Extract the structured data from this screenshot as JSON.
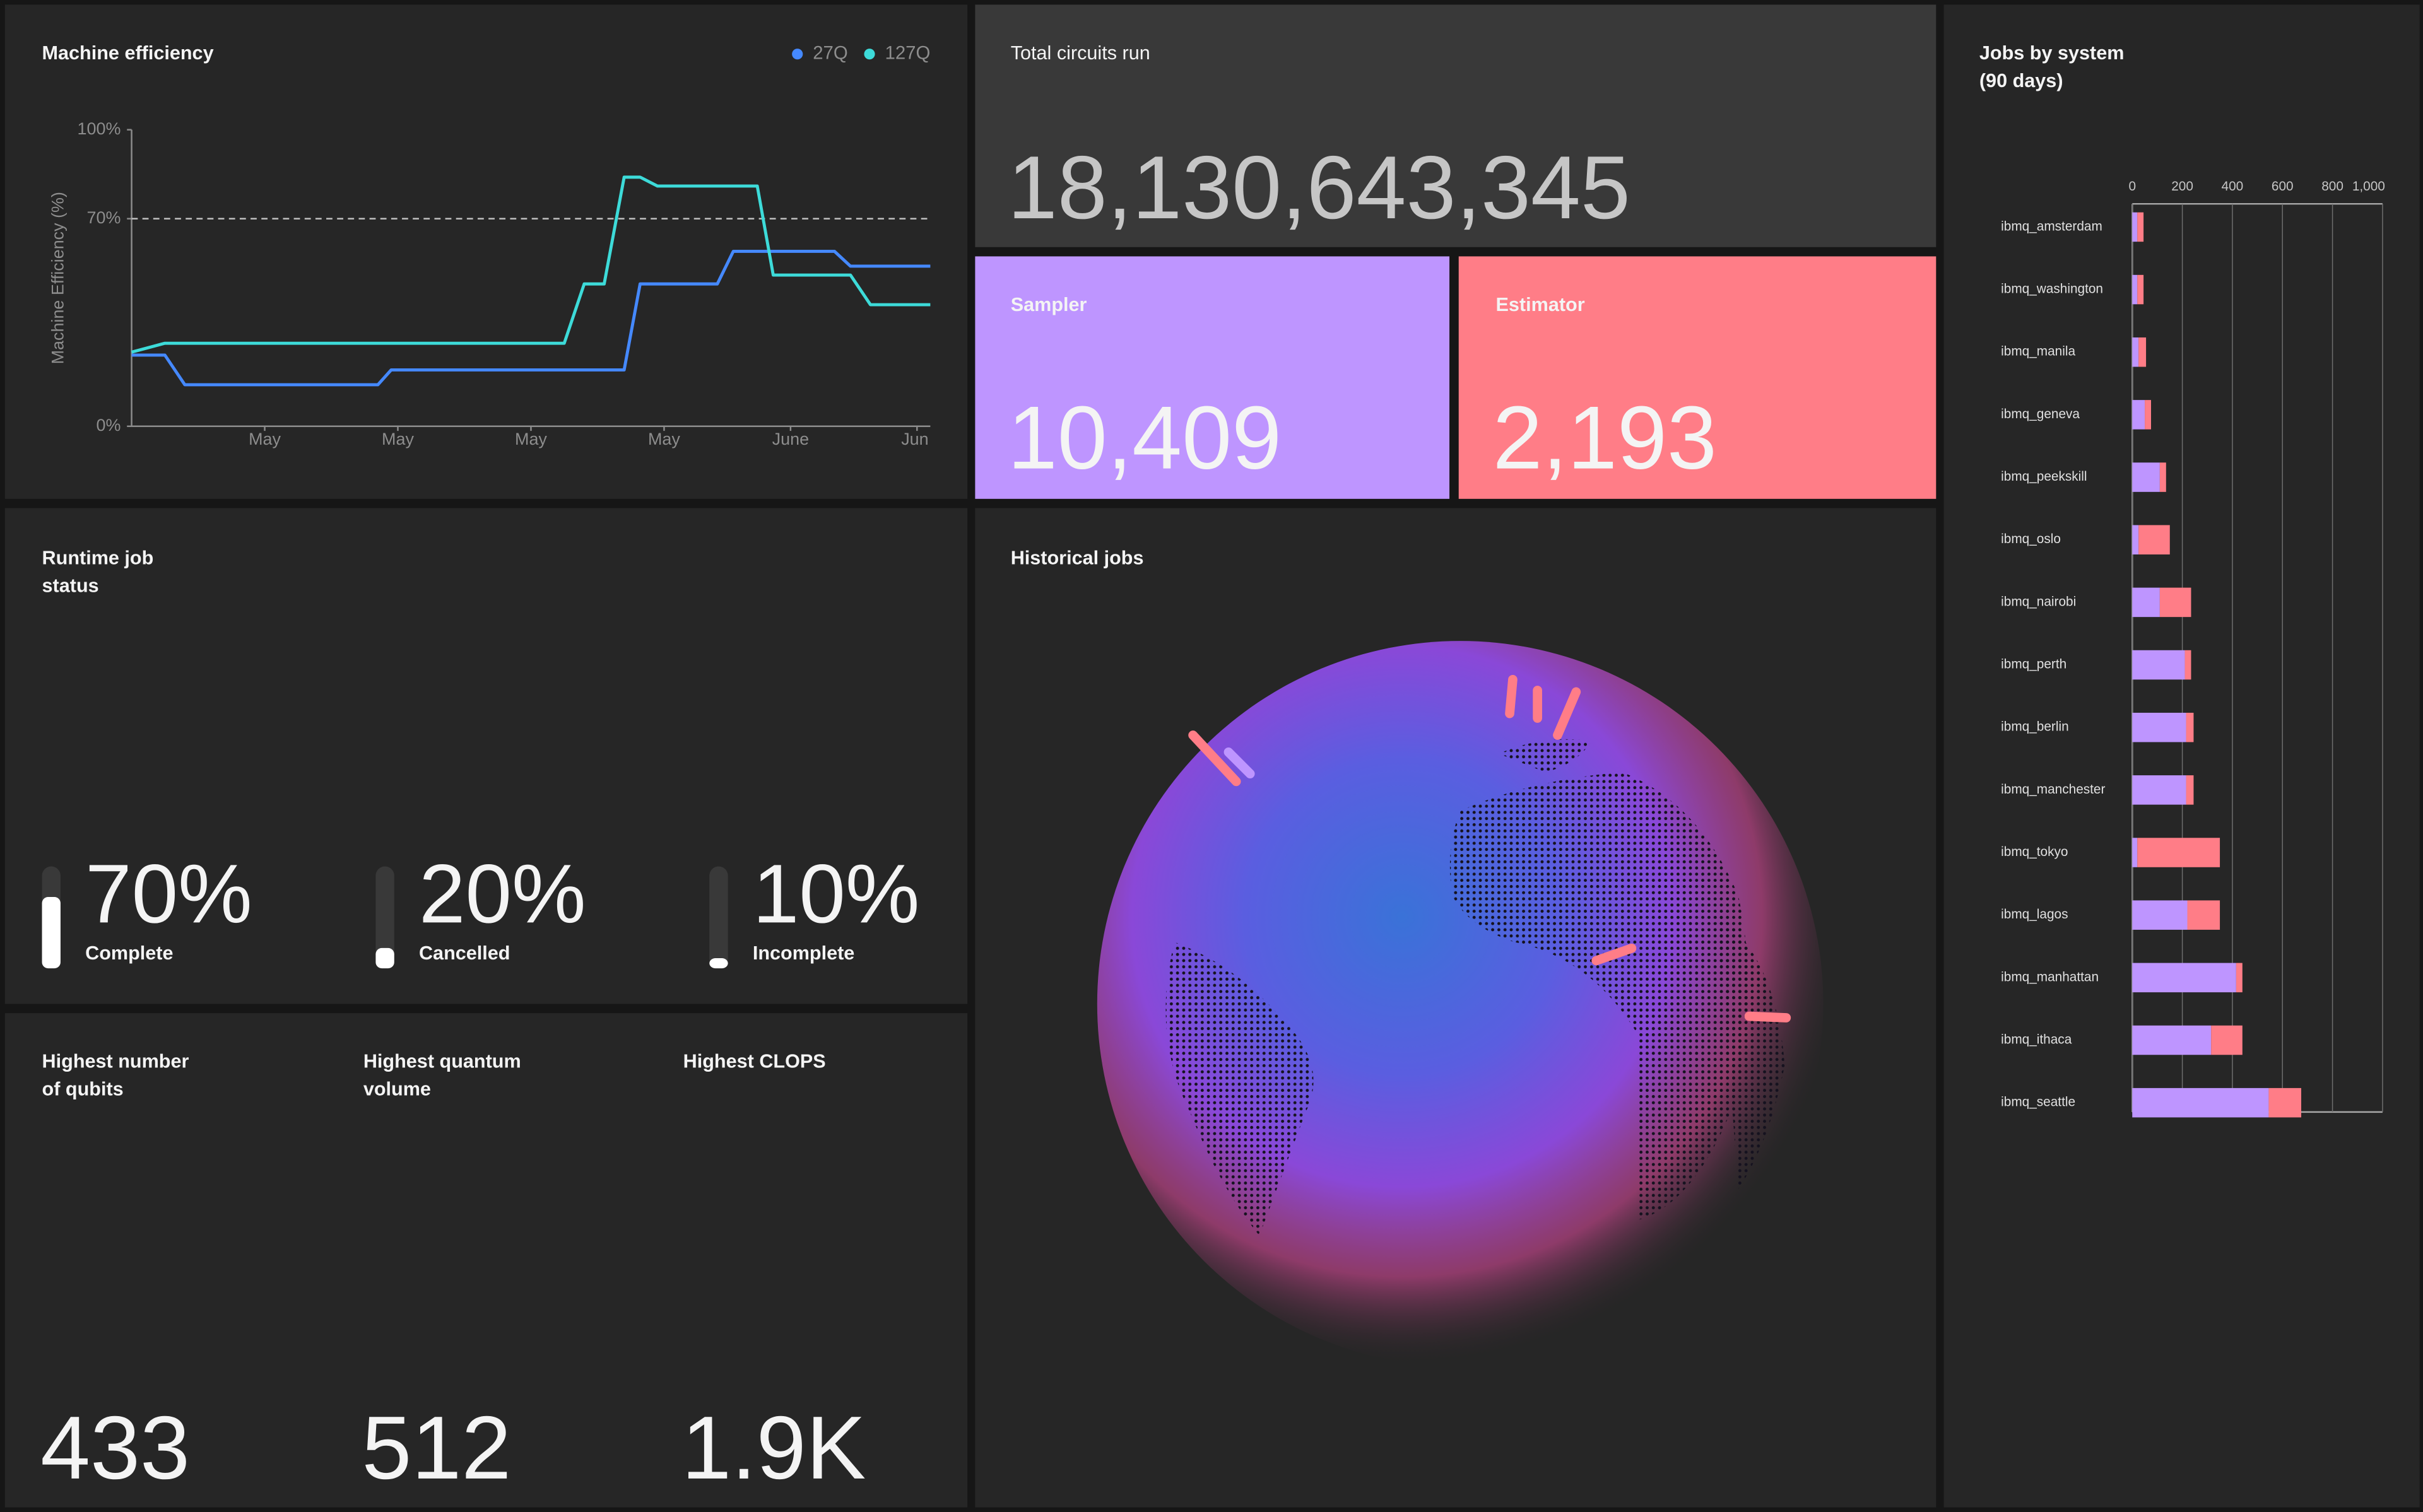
{
  "chart_data": [
    {
      "type": "line",
      "title": "Machine efficiency",
      "y_label": "Machine Efficiency (%)",
      "x": [
        0,
        2.5,
        4,
        18.5,
        19.5,
        32.5,
        34,
        35.5,
        37,
        38.2,
        39.5,
        44,
        45.2,
        47,
        48.2,
        52.8,
        54,
        55.5,
        60
      ],
      "xlim": [
        0,
        60
      ],
      "xticks": [
        {
          "value": 10,
          "label": "May"
        },
        {
          "value": 20,
          "label": "May"
        },
        {
          "value": 30,
          "label": "May"
        },
        {
          "value": 40,
          "label": "May"
        },
        {
          "value": 49.5,
          "label": "June"
        },
        {
          "value": 59,
          "label": "Jun"
        }
      ],
      "ylim": [
        0,
        100
      ],
      "yticks": [
        {
          "value": 0,
          "label": "0%"
        },
        {
          "value": 70,
          "label": "70%"
        },
        {
          "value": 100,
          "label": "100%"
        }
      ],
      "reference_line": 70,
      "series": [
        {
          "name": "27Q",
          "color": "#4589ff",
          "values": [
            24,
            24,
            14,
            14,
            19,
            19,
            19,
            19,
            19,
            48,
            48,
            48,
            59,
            59,
            59,
            59,
            54,
            54,
            54
          ]
        },
        {
          "name": "127Q",
          "color": "#3ddbd9",
          "values": [
            25,
            28,
            28,
            28,
            28,
            28,
            48,
            48,
            84,
            84,
            81,
            81,
            81,
            81,
            51,
            51,
            51,
            41,
            41
          ]
        }
      ]
    },
    {
      "type": "bar",
      "orientation": "horizontal",
      "stacked": true,
      "title": "Jobs by system",
      "subtitle": "(90 days)",
      "categories": [
        "ibmq_amsterdam",
        "ibmq_washington",
        "ibmq_manila",
        "ibmq_geneva",
        "ibmq_peekskill",
        "ibmq_oslo",
        "ibmq_nairobi",
        "ibmq_perth",
        "ibmq_berlin",
        "ibmq_manchester",
        "ibmq_tokyo",
        "ibmq_lagos",
        "ibmq_manhattan",
        "ibmq_ithaca",
        "ibmq_seattle"
      ],
      "xlim": [
        0,
        1000
      ],
      "xticks": [
        0,
        200,
        400,
        600,
        800,
        {
          "value": 1000,
          "label": "1,000"
        }
      ],
      "series": [
        {
          "color": "#be95ff",
          "values": [
            20,
            20,
            25,
            50,
            110,
            25,
            110,
            210,
            215,
            215,
            20,
            220,
            415,
            315,
            545
          ]
        },
        {
          "color": "#ff7d87",
          "values": [
            25,
            25,
            30,
            25,
            25,
            125,
            125,
            25,
            30,
            30,
            330,
            130,
            25,
            125,
            130
          ]
        }
      ]
    }
  ],
  "total_circuits": {
    "title": "Total circuits run",
    "value": "18,130,643,345"
  },
  "sampler": {
    "title": "Sampler",
    "value": "10,409"
  },
  "estimator": {
    "title": "Estimator",
    "value": "2,193"
  },
  "runtime_status": {
    "title": [
      "Runtime job",
      "status"
    ],
    "items": [
      {
        "label": "Complete",
        "value": 70,
        "value_label": "70%"
      },
      {
        "label": "Cancelled",
        "value": 20,
        "value_label": "20%"
      },
      {
        "label": "Incomplete",
        "value": 10,
        "value_label": "10%"
      }
    ]
  },
  "highest": [
    {
      "title": [
        "Highest number",
        "of qubits"
      ],
      "value": 433
    },
    {
      "title": [
        "Highest quantum",
        "volume"
      ],
      "value": 512
    },
    {
      "title": [
        "Highest CLOPS"
      ],
      "value": "1.9K"
    }
  ],
  "historical_jobs": {
    "title": "Historical jobs"
  }
}
